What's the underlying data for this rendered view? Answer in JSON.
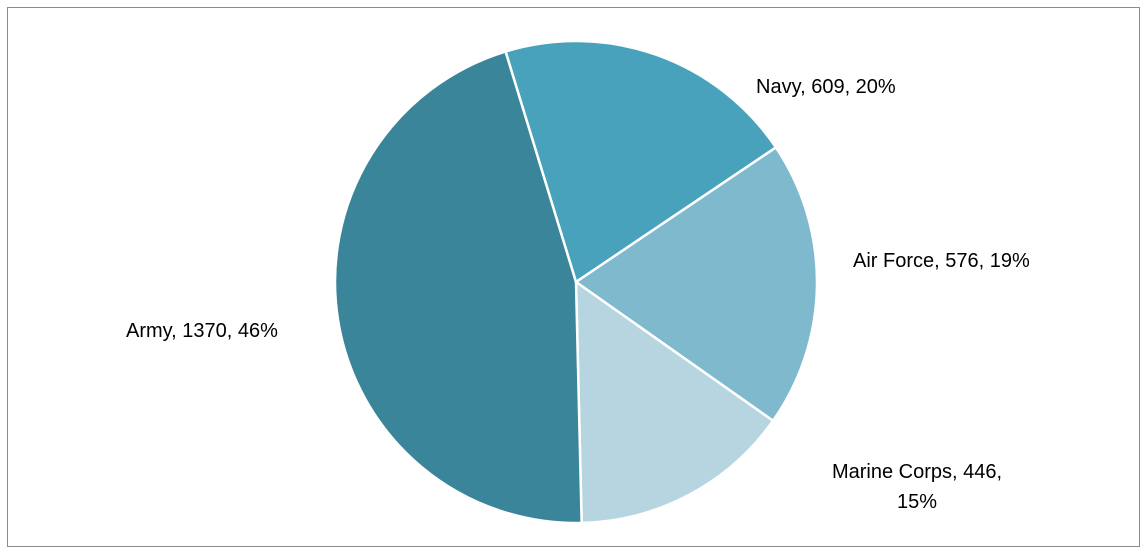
{
  "chart_data": {
    "type": "pie",
    "title": "",
    "slices": [
      {
        "label": "Navy",
        "value": 609,
        "percent": 20,
        "color": "#48a2bb",
        "label_lines": [
          "Navy, 609, 20%"
        ]
      },
      {
        "label": "Air Force",
        "value": 576,
        "percent": 19,
        "color": "#7fb9ce",
        "label_lines": [
          "Air Force, 576, 19%"
        ]
      },
      {
        "label": "Marine Corps",
        "value": 446,
        "percent": 15,
        "color": "#b7d5e0",
        "label_lines": [
          "Marine Corps, 446,",
          "15%"
        ]
      },
      {
        "label": "Army",
        "value": 1370,
        "percent": 46,
        "color": "#3a8599",
        "label_lines": [
          "Army, 1370, 46%"
        ]
      }
    ],
    "legend": "none",
    "slice_border_color": "#ffffff"
  }
}
